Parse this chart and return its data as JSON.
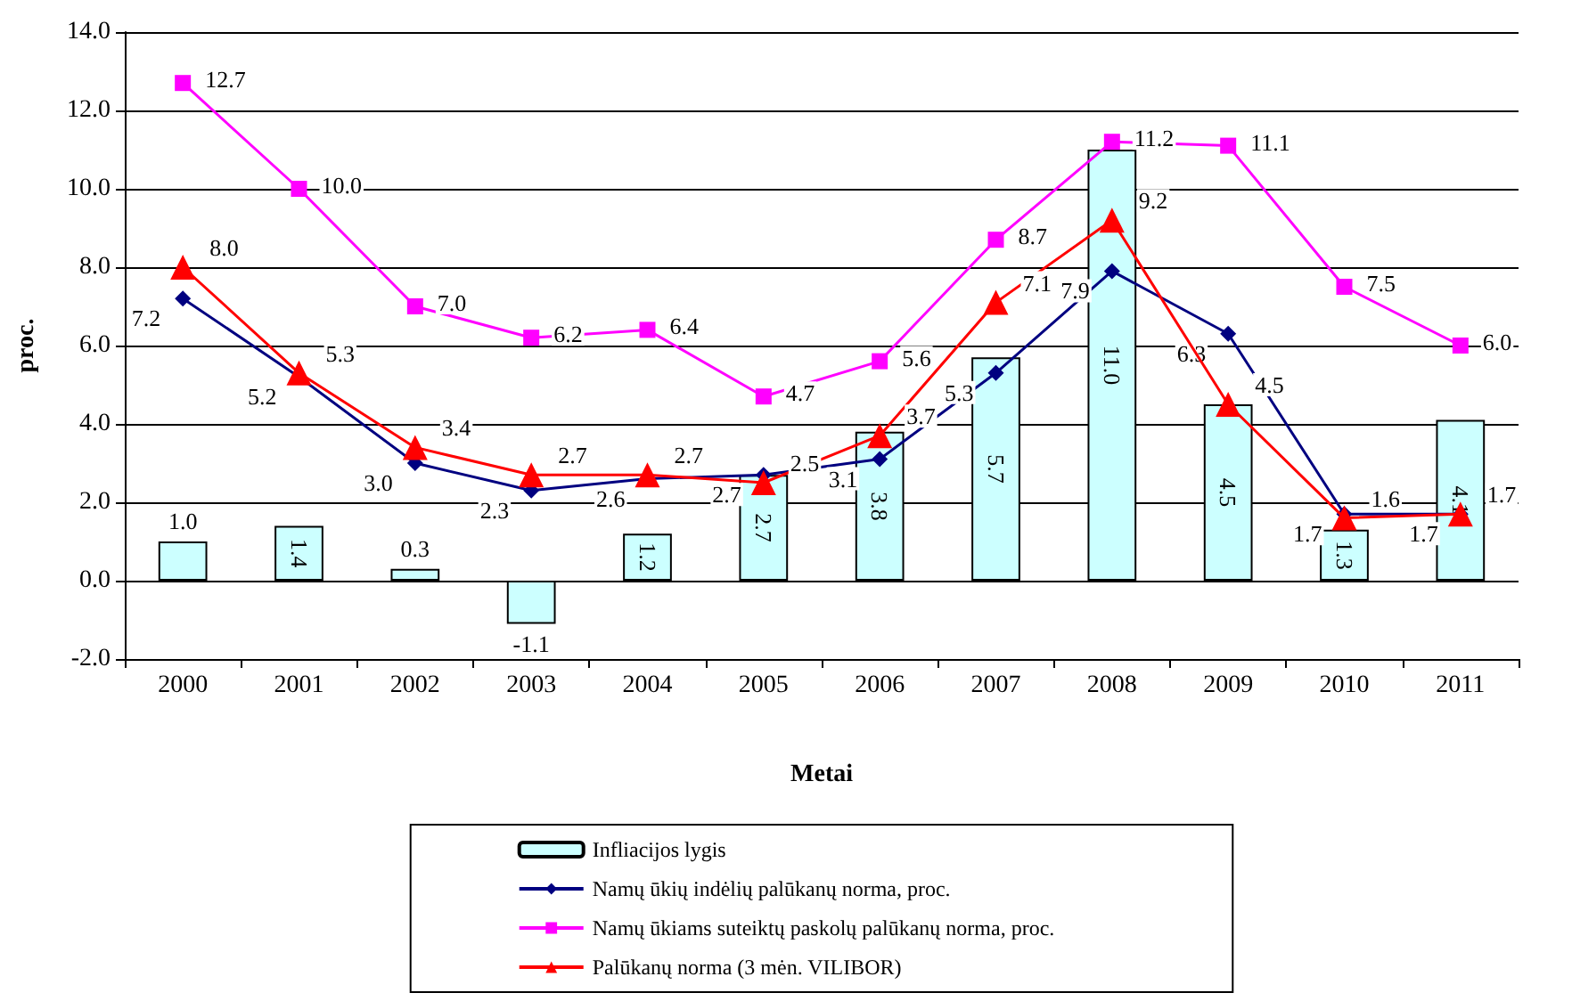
{
  "chart_data": {
    "type": "bar",
    "xlabel": "Metai",
    "ylabel": "proc.",
    "categories": [
      "2000",
      "2001",
      "2002",
      "2003",
      "2004",
      "2005",
      "2006",
      "2007",
      "2008",
      "2009",
      "2010",
      "2011"
    ],
    "series": [
      {
        "name": "Infliacijos lygis",
        "color": "#ccffff",
        "values": [
          1.0,
          1.4,
          0.3,
          -1.1,
          1.2,
          2.7,
          3.8,
          5.7,
          11.0,
          4.5,
          1.3,
          4.1
        ],
        "value_labels": [
          "1.0",
          "1.4",
          "0.3",
          "-1.1",
          "1.2",
          "2.7",
          "3.8",
          "5.7",
          "11.0",
          "4.5",
          "1.3",
          "4.1"
        ]
      },
      {
        "name": "Namų ūkių indėlių palūkanų norma, proc.",
        "type": "line",
        "color": "#000080",
        "marker": "diamond",
        "values": [
          7.2,
          5.2,
          3.0,
          2.3,
          2.6,
          2.7,
          3.1,
          5.3,
          7.9,
          6.3,
          1.7,
          1.7
        ],
        "value_labels": [
          "7.2",
          "5.2",
          "3.0",
          "2.3",
          "2.6",
          "2.7",
          "3.1",
          "5.3",
          "7.9",
          "6.3",
          "1.7",
          "1.7"
        ]
      },
      {
        "name": "Namų ūkiams suteiktų paskolų palūkanų norma, proc.",
        "type": "line",
        "color": "#ff00ff",
        "marker": "square",
        "values": [
          12.7,
          10.0,
          7.0,
          6.2,
          6.4,
          4.7,
          5.6,
          8.7,
          11.2,
          11.1,
          7.5,
          6.0
        ],
        "value_labels": [
          "12.7",
          "10.0",
          "7.0",
          "6.2",
          "6.4",
          "4.7",
          "5.6",
          "8.7",
          "11.2",
          "11.1",
          "7.5",
          "6.0"
        ]
      },
      {
        "name": "Palūkanų norma (3 mėn. VILIBOR)",
        "type": "line",
        "color": "#ff0000",
        "marker": "triangle",
        "values": [
          8.0,
          5.3,
          3.4,
          2.7,
          2.7,
          2.5,
          3.7,
          7.1,
          9.2,
          4.5,
          1.6,
          1.7
        ],
        "value_labels": [
          "8.0",
          "5.3",
          "3.4",
          "2.7",
          "2.7",
          "2.5",
          "3.7",
          "7.1",
          "9.2",
          "4.5",
          "1.6",
          "1.7"
        ]
      }
    ],
    "ylim": [
      -2,
      14
    ],
    "yticks": [
      {
        "value": -2,
        "label": "-2.0"
      },
      {
        "value": 0,
        "label": "0.0"
      },
      {
        "value": 2,
        "label": "2.0"
      },
      {
        "value": 4,
        "label": "4.0"
      },
      {
        "value": 6,
        "label": "6.0"
      },
      {
        "value": 8,
        "label": "8.0"
      },
      {
        "value": 10,
        "label": "10.0"
      },
      {
        "value": 12,
        "label": "12.0"
      },
      {
        "value": 14,
        "label": "14.0"
      }
    ],
    "grid": "y",
    "legend": "bottom",
    "data_labels": true
  }
}
